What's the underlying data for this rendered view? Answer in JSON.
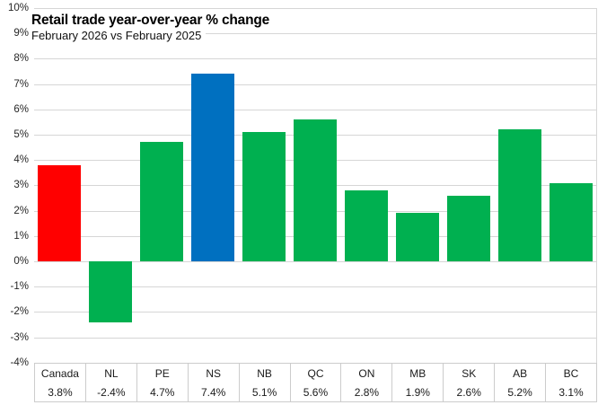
{
  "chart_data": {
    "type": "bar",
    "title": "Retail trade year-over-year % change",
    "subtitle": "February 2026 vs February 2025",
    "categories": [
      "Canada",
      "NL",
      "PE",
      "NS",
      "NB",
      "QC",
      "ON",
      "MB",
      "SK",
      "AB",
      "BC"
    ],
    "values": [
      3.8,
      -2.4,
      4.7,
      7.4,
      5.1,
      5.6,
      2.8,
      1.9,
      2.6,
      5.2,
      3.1
    ],
    "value_labels": [
      "3.8%",
      "-2.4%",
      "4.7%",
      "7.4%",
      "5.1%",
      "5.6%",
      "2.8%",
      "1.9%",
      "2.6%",
      "5.2%",
      "3.1%"
    ],
    "bar_colors": [
      "#FF0000",
      "#00B050",
      "#00B050",
      "#0070C0",
      "#00B050",
      "#00B050",
      "#00B050",
      "#00B050",
      "#00B050",
      "#00B050",
      "#00B050"
    ],
    "xlabel": "",
    "ylabel": "",
    "ylim": [
      -4,
      10
    ],
    "ytick_step": 1,
    "ytick_labels": [
      "10%",
      "9%",
      "8%",
      "7%",
      "6%",
      "5%",
      "4%",
      "3%",
      "2%",
      "1%",
      "0%",
      "-1%",
      "-2%",
      "-3%",
      "-4%"
    ],
    "grid": true,
    "legend": "none",
    "data_table_shown": true
  },
  "colors": {
    "canada_bar": "#FF0000",
    "province_bar": "#00B050",
    "highlight_bar_ns": "#0070C0",
    "gridline": "#d6d6d6",
    "table_border": "#cccccc"
  }
}
